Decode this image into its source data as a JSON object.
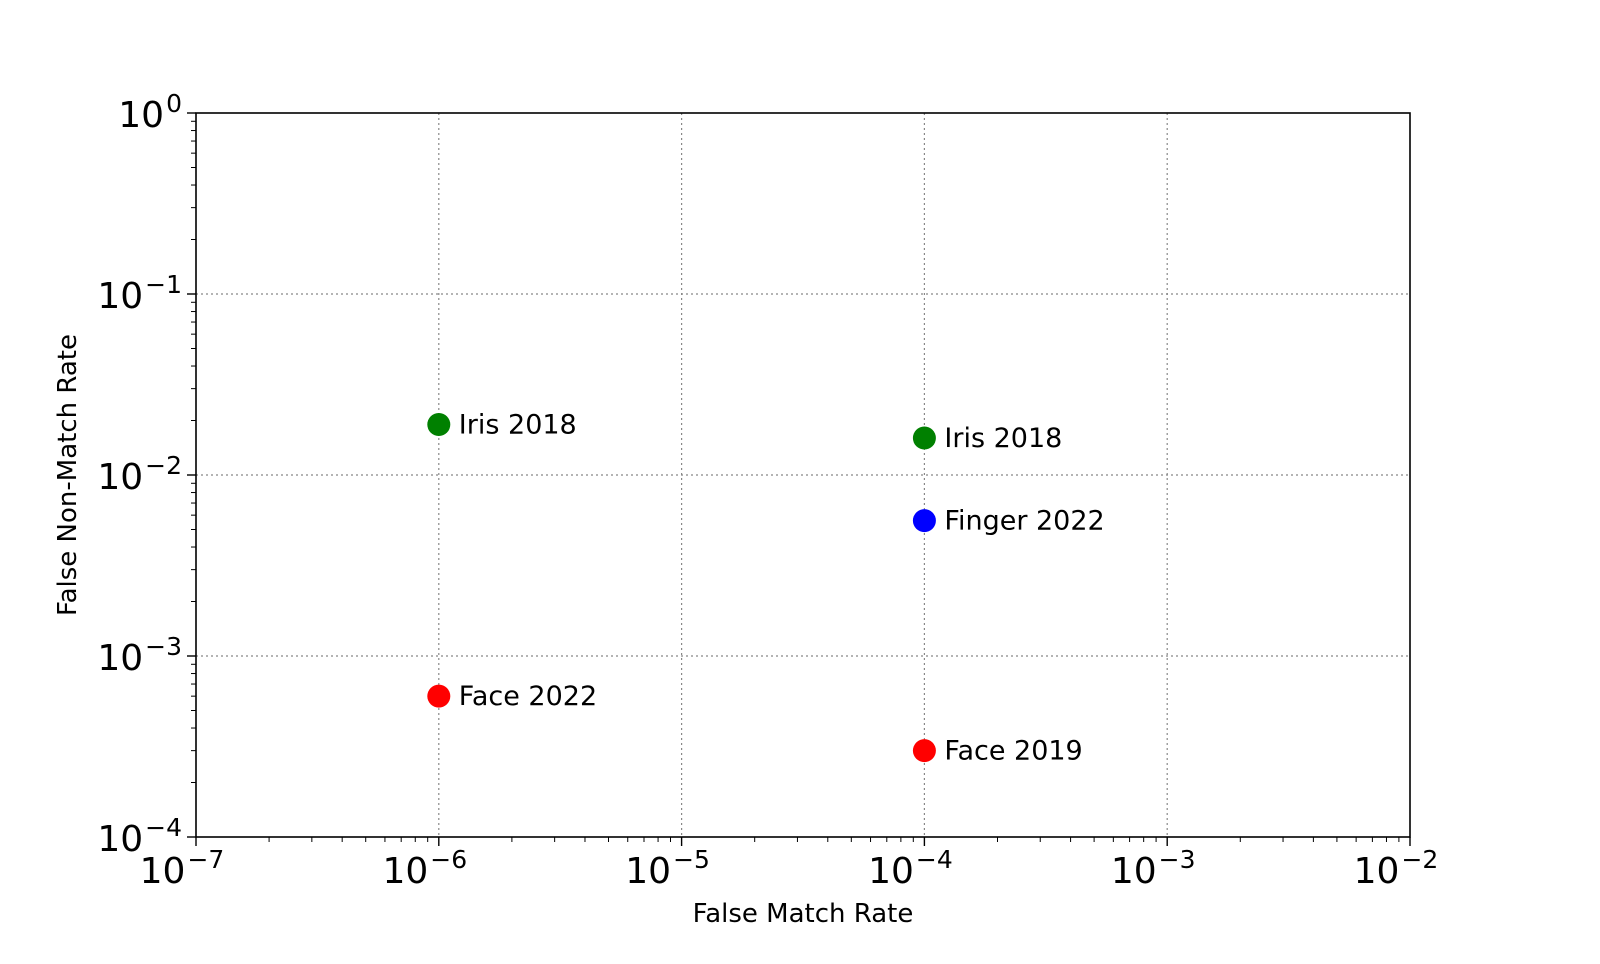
{
  "chart_data": {
    "type": "scatter",
    "title": "",
    "xlabel": "False Match Rate",
    "ylabel": "False Non-Match Rate",
    "xscale": "log",
    "yscale": "log",
    "xlim": [
      1e-07,
      0.01
    ],
    "ylim": [
      0.0001,
      1
    ],
    "grid": true,
    "grid_style": "dotted",
    "legend": null,
    "x_ticks": [
      {
        "exp": -7,
        "label_base": "10",
        "label_exp": "−7"
      },
      {
        "exp": -6,
        "label_base": "10",
        "label_exp": "−6"
      },
      {
        "exp": -5,
        "label_base": "10",
        "label_exp": "−5"
      },
      {
        "exp": -4,
        "label_base": "10",
        "label_exp": "−4"
      },
      {
        "exp": -3,
        "label_base": "10",
        "label_exp": "−3"
      },
      {
        "exp": -2,
        "label_base": "10",
        "label_exp": "−2"
      }
    ],
    "y_ticks": [
      {
        "exp": 0,
        "label_base": "10",
        "label_exp": "0"
      },
      {
        "exp": -1,
        "label_base": "10",
        "label_exp": "−1"
      },
      {
        "exp": -2,
        "label_base": "10",
        "label_exp": "−2"
      },
      {
        "exp": -3,
        "label_base": "10",
        "label_exp": "−3"
      },
      {
        "exp": -4,
        "label_base": "10",
        "label_exp": "−4"
      }
    ],
    "points": [
      {
        "label": "Iris 2018",
        "x": 1e-06,
        "y": 0.019,
        "color": "#008000"
      },
      {
        "label": "Iris 2018",
        "x": 0.0001,
        "y": 0.016,
        "color": "#008000"
      },
      {
        "label": "Finger 2022",
        "x": 0.0001,
        "y": 0.0056,
        "color": "#0000ff"
      },
      {
        "label": "Face 2022",
        "x": 1e-06,
        "y": 0.0006,
        "color": "#ff0000"
      },
      {
        "label": "Face 2019",
        "x": 0.0001,
        "y": 0.0003,
        "color": "#ff0000"
      }
    ]
  }
}
